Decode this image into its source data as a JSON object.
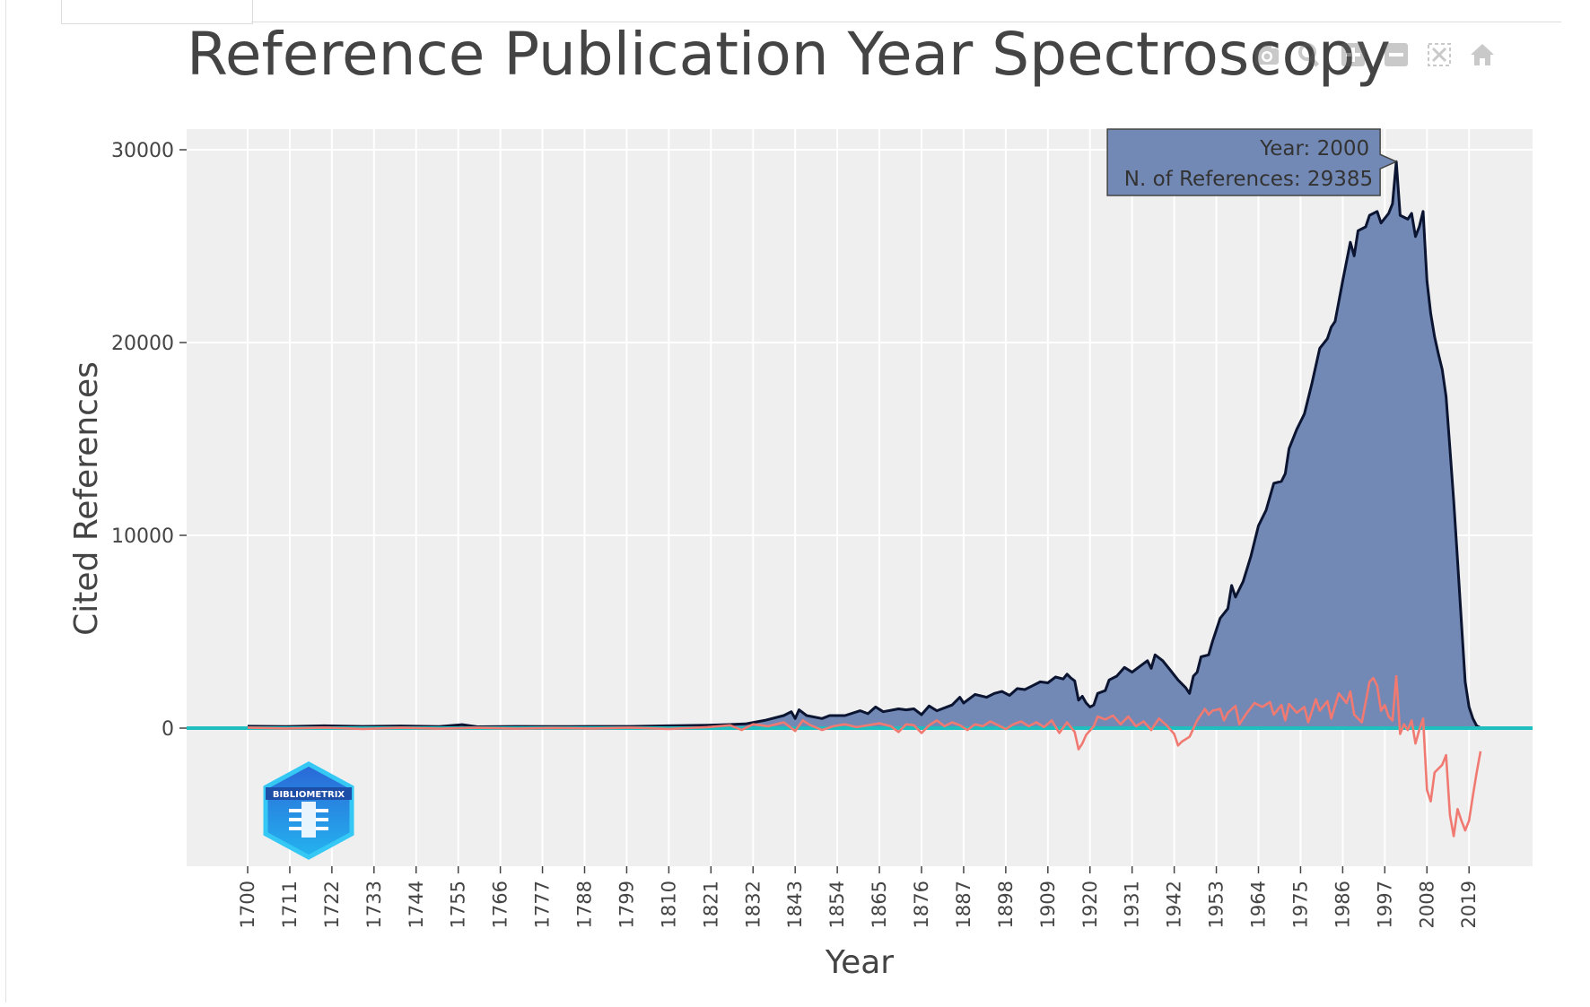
{
  "header": {
    "title": "Reference Publication Year Spectroscopy"
  },
  "logo": {
    "text": "BIBLIOMETRIX"
  },
  "modebar": {
    "buttons": [
      "camera-icon",
      "zoom-icon",
      "zoom-in-icon",
      "zoom-out-icon",
      "autoscale-icon",
      "home-icon"
    ]
  },
  "tooltip": {
    "year_label": "Year:  2000",
    "refs_label": "N. of References:  29385"
  },
  "colors": {
    "area_fill": "#7389b5",
    "area_line": "#0b1430",
    "deviation_line": "#f07a72",
    "zero_line": "#1fbfbf",
    "plot_bg": "#efefef"
  },
  "chart_data": {
    "type": "area",
    "title": "Reference Publication Year Spectroscopy",
    "xlabel": "Year",
    "ylabel": "Cited References",
    "xlim": [
      1700,
      2022
    ],
    "ylim": [
      -7000,
      31000
    ],
    "x_ticks": [
      1700,
      1711,
      1722,
      1733,
      1744,
      1755,
      1766,
      1777,
      1788,
      1799,
      1810,
      1821,
      1832,
      1843,
      1854,
      1865,
      1876,
      1887,
      1898,
      1909,
      1920,
      1931,
      1942,
      1953,
      1964,
      1975,
      1986,
      1997,
      2008,
      2019
    ],
    "y_ticks": [
      0,
      10000,
      20000,
      30000
    ],
    "grid": true,
    "series": [
      {
        "name": "",
        "style": "filled-area",
        "points": [
          [
            1700,
            100
          ],
          [
            1710,
            80
          ],
          [
            1720,
            120
          ],
          [
            1730,
            90
          ],
          [
            1740,
            110
          ],
          [
            1750,
            80
          ],
          [
            1756,
            180
          ],
          [
            1760,
            70
          ],
          [
            1770,
            90
          ],
          [
            1780,
            80
          ],
          [
            1790,
            90
          ],
          [
            1800,
            90
          ],
          [
            1810,
            120
          ],
          [
            1820,
            150
          ],
          [
            1825,
            180
          ],
          [
            1830,
            220
          ],
          [
            1835,
            400
          ],
          [
            1840,
            650
          ],
          [
            1842,
            850
          ],
          [
            1843,
            500
          ],
          [
            1844,
            950
          ],
          [
            1846,
            650
          ],
          [
            1850,
            500
          ],
          [
            1852,
            650
          ],
          [
            1856,
            650
          ],
          [
            1860,
            900
          ],
          [
            1862,
            750
          ],
          [
            1864,
            1100
          ],
          [
            1866,
            850
          ],
          [
            1870,
            1000
          ],
          [
            1872,
            950
          ],
          [
            1874,
            1000
          ],
          [
            1876,
            700
          ],
          [
            1878,
            1150
          ],
          [
            1880,
            900
          ],
          [
            1884,
            1200
          ],
          [
            1886,
            1600
          ],
          [
            1887,
            1300
          ],
          [
            1890,
            1750
          ],
          [
            1893,
            1600
          ],
          [
            1895,
            1800
          ],
          [
            1897,
            1900
          ],
          [
            1899,
            1700
          ],
          [
            1901,
            2050
          ],
          [
            1903,
            2000
          ],
          [
            1905,
            2200
          ],
          [
            1907,
            2400
          ],
          [
            1909,
            2350
          ],
          [
            1911,
            2650
          ],
          [
            1913,
            2550
          ],
          [
            1914,
            2800
          ],
          [
            1915,
            2600
          ],
          [
            1916,
            2450
          ],
          [
            1917,
            1450
          ],
          [
            1918,
            1650
          ],
          [
            1919,
            1300
          ],
          [
            1920,
            1100
          ],
          [
            1921,
            1200
          ],
          [
            1922,
            1800
          ],
          [
            1924,
            1950
          ],
          [
            1925,
            2500
          ],
          [
            1927,
            2700
          ],
          [
            1929,
            3150
          ],
          [
            1931,
            2900
          ],
          [
            1933,
            3200
          ],
          [
            1935,
            3500
          ],
          [
            1936,
            3100
          ],
          [
            1937,
            3800
          ],
          [
            1939,
            3500
          ],
          [
            1941,
            3000
          ],
          [
            1943,
            2500
          ],
          [
            1945,
            2100
          ],
          [
            1946,
            1800
          ],
          [
            1947,
            2700
          ],
          [
            1948,
            2900
          ],
          [
            1949,
            3700
          ],
          [
            1951,
            3800
          ],
          [
            1952,
            4500
          ],
          [
            1953,
            5100
          ],
          [
            1954,
            5700
          ],
          [
            1956,
            6200
          ],
          [
            1957,
            7400
          ],
          [
            1958,
            6800
          ],
          [
            1960,
            7600
          ],
          [
            1962,
            8900
          ],
          [
            1964,
            10500
          ],
          [
            1966,
            11300
          ],
          [
            1968,
            12700
          ],
          [
            1970,
            12800
          ],
          [
            1971,
            13200
          ],
          [
            1972,
            14500
          ],
          [
            1974,
            15500
          ],
          [
            1976,
            16300
          ],
          [
            1978,
            17900
          ],
          [
            1980,
            19700
          ],
          [
            1982,
            20200
          ],
          [
            1983,
            20800
          ],
          [
            1984,
            21100
          ],
          [
            1986,
            23200
          ],
          [
            1988,
            25200
          ],
          [
            1989,
            24500
          ],
          [
            1990,
            25800
          ],
          [
            1992,
            26000
          ],
          [
            1993,
            26600
          ],
          [
            1995,
            26800
          ],
          [
            1996,
            26200
          ],
          [
            1998,
            26700
          ],
          [
            1999,
            27200
          ],
          [
            2000,
            29385
          ],
          [
            2001,
            26600
          ],
          [
            2003,
            26400
          ],
          [
            2004,
            26700
          ],
          [
            2005,
            25500
          ],
          [
            2006,
            26000
          ],
          [
            2007,
            26800
          ],
          [
            2008,
            23200
          ],
          [
            2009,
            21500
          ],
          [
            2010,
            20300
          ],
          [
            2011,
            19400
          ],
          [
            2012,
            18600
          ],
          [
            2013,
            17200
          ],
          [
            2014,
            14500
          ],
          [
            2015,
            11800
          ],
          [
            2016,
            8700
          ],
          [
            2017,
            5500
          ],
          [
            2018,
            2400
          ],
          [
            2019,
            1100
          ],
          [
            2020,
            500
          ],
          [
            2021,
            120
          ],
          [
            2022,
            20
          ]
        ]
      },
      {
        "name": "",
        "style": "line",
        "points": [
          [
            1700,
            30
          ],
          [
            1710,
            -20
          ],
          [
            1720,
            30
          ],
          [
            1730,
            -40
          ],
          [
            1740,
            20
          ],
          [
            1750,
            -30
          ],
          [
            1760,
            20
          ],
          [
            1770,
            -30
          ],
          [
            1780,
            10
          ],
          [
            1790,
            -20
          ],
          [
            1800,
            30
          ],
          [
            1810,
            -40
          ],
          [
            1820,
            50
          ],
          [
            1826,
            150
          ],
          [
            1829,
            -100
          ],
          [
            1832,
            200
          ],
          [
            1836,
            100
          ],
          [
            1840,
            300
          ],
          [
            1843,
            -150
          ],
          [
            1845,
            400
          ],
          [
            1847,
            150
          ],
          [
            1850,
            -100
          ],
          [
            1853,
            100
          ],
          [
            1856,
            200
          ],
          [
            1859,
            50
          ],
          [
            1862,
            150
          ],
          [
            1865,
            250
          ],
          [
            1868,
            100
          ],
          [
            1870,
            -200
          ],
          [
            1872,
            200
          ],
          [
            1874,
            150
          ],
          [
            1876,
            -250
          ],
          [
            1878,
            150
          ],
          [
            1880,
            400
          ],
          [
            1882,
            100
          ],
          [
            1884,
            300
          ],
          [
            1886,
            150
          ],
          [
            1888,
            -100
          ],
          [
            1890,
            200
          ],
          [
            1892,
            100
          ],
          [
            1894,
            350
          ],
          [
            1896,
            150
          ],
          [
            1898,
            -50
          ],
          [
            1900,
            200
          ],
          [
            1902,
            350
          ],
          [
            1904,
            100
          ],
          [
            1906,
            300
          ],
          [
            1908,
            50
          ],
          [
            1910,
            400
          ],
          [
            1912,
            -250
          ],
          [
            1914,
            300
          ],
          [
            1916,
            -200
          ],
          [
            1917,
            -1100
          ],
          [
            1918,
            -800
          ],
          [
            1919,
            -350
          ],
          [
            1921,
            100
          ],
          [
            1922,
            600
          ],
          [
            1924,
            450
          ],
          [
            1926,
            650
          ],
          [
            1928,
            200
          ],
          [
            1930,
            600
          ],
          [
            1932,
            100
          ],
          [
            1934,
            350
          ],
          [
            1936,
            -100
          ],
          [
            1938,
            500
          ],
          [
            1940,
            150
          ],
          [
            1942,
            -300
          ],
          [
            1943,
            -900
          ],
          [
            1944,
            -700
          ],
          [
            1946,
            -450
          ],
          [
            1948,
            400
          ],
          [
            1950,
            1000
          ],
          [
            1951,
            700
          ],
          [
            1952,
            900
          ],
          [
            1954,
            1000
          ],
          [
            1955,
            400
          ],
          [
            1956,
            800
          ],
          [
            1958,
            1150
          ],
          [
            1959,
            200
          ],
          [
            1961,
            800
          ],
          [
            1963,
            1300
          ],
          [
            1965,
            1100
          ],
          [
            1967,
            1350
          ],
          [
            1968,
            700
          ],
          [
            1970,
            1200
          ],
          [
            1971,
            400
          ],
          [
            1972,
            1250
          ],
          [
            1974,
            800
          ],
          [
            1976,
            1100
          ],
          [
            1977,
            300
          ],
          [
            1979,
            1500
          ],
          [
            1980,
            900
          ],
          [
            1982,
            1400
          ],
          [
            1983,
            500
          ],
          [
            1985,
            1800
          ],
          [
            1987,
            1300
          ],
          [
            1988,
            1900
          ],
          [
            1989,
            700
          ],
          [
            1991,
            300
          ],
          [
            1993,
            2400
          ],
          [
            1994,
            2600
          ],
          [
            1995,
            2200
          ],
          [
            1996,
            900
          ],
          [
            1997,
            1200
          ],
          [
            1998,
            600
          ],
          [
            1999,
            400
          ],
          [
            2000,
            2700
          ],
          [
            2001,
            -300
          ],
          [
            2002,
            200
          ],
          [
            2003,
            -100
          ],
          [
            2004,
            400
          ],
          [
            2005,
            -800
          ],
          [
            2006,
            -100
          ],
          [
            2007,
            500
          ],
          [
            2008,
            -3200
          ],
          [
            2009,
            -3800
          ],
          [
            2010,
            -2300
          ],
          [
            2011,
            -2100
          ],
          [
            2012,
            -1900
          ],
          [
            2013,
            -1400
          ],
          [
            2014,
            -4500
          ],
          [
            2015,
            -5600
          ],
          [
            2016,
            -4200
          ],
          [
            2017,
            -4800
          ],
          [
            2018,
            -5300
          ],
          [
            2019,
            -4800
          ],
          [
            2020,
            -3500
          ],
          [
            2021,
            -2300
          ],
          [
            2022,
            -1200
          ]
        ]
      }
    ],
    "highlight": {
      "x": 2000,
      "y": 29385
    }
  }
}
